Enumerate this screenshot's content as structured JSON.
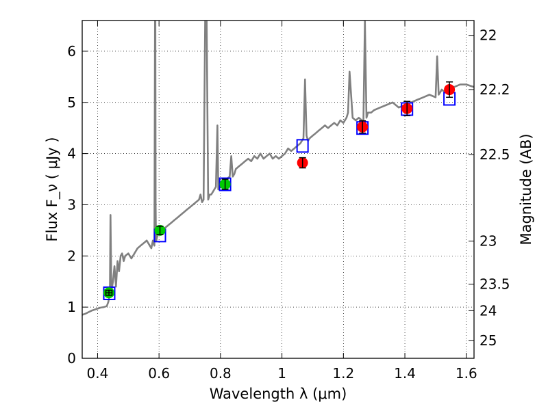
{
  "chart_data": {
    "type": "scatter",
    "xlabel": "Wavelength  λ (μm)",
    "ylabel": "Flux  F_ν  ( μJy )",
    "y2label": "Magnitude (AB)",
    "xlim": [
      0.35,
      1.625
    ],
    "ylim": [
      0,
      6.6
    ],
    "grid": true,
    "x_ticks": [
      0.4,
      0.6,
      0.8,
      1.0,
      1.2,
      1.4,
      1.6
    ],
    "x_tick_labels": [
      "0.4",
      "0.6",
      "0.8",
      "1",
      "1.2",
      "1.4",
      "1.6"
    ],
    "y_ticks": [
      0,
      1,
      2,
      3,
      4,
      5,
      6
    ],
    "y_tick_labels": [
      "0",
      "1",
      "2",
      "3",
      "4",
      "5",
      "6"
    ],
    "y2_ticks": [
      {
        "label": "22",
        "flux": 6.31
      },
      {
        "label": "22.2",
        "flux": 5.25
      },
      {
        "label": "22.5",
        "flux": 3.98
      },
      {
        "label": "23",
        "flux": 2.29
      },
      {
        "label": "23.5",
        "flux": 1.45
      },
      {
        "label": "24",
        "flux": 0.93
      },
      {
        "label": "25",
        "flux": 0.35
      }
    ],
    "series": [
      {
        "marker": "line",
        "color": "#808080",
        "x": [
          0.35,
          0.36,
          0.37,
          0.38,
          0.39,
          0.4,
          0.41,
          0.42,
          0.43,
          0.435,
          0.44,
          0.442,
          0.445,
          0.45,
          0.455,
          0.46,
          0.465,
          0.47,
          0.475,
          0.48,
          0.485,
          0.49,
          0.5,
          0.51,
          0.52,
          0.53,
          0.54,
          0.55,
          0.56,
          0.57,
          0.575,
          0.58,
          0.585,
          0.587,
          0.588,
          0.589,
          0.59,
          0.591,
          0.593,
          0.595,
          0.6,
          0.61,
          0.62,
          0.63,
          0.64,
          0.65,
          0.66,
          0.67,
          0.68,
          0.69,
          0.7,
          0.71,
          0.72,
          0.73,
          0.735,
          0.74,
          0.745,
          0.75,
          0.755,
          0.76,
          0.765,
          0.77,
          0.775,
          0.78,
          0.785,
          0.79,
          0.793,
          0.795,
          0.797,
          0.8,
          0.81,
          0.82,
          0.83,
          0.835,
          0.84,
          0.845,
          0.85,
          0.86,
          0.87,
          0.88,
          0.89,
          0.9,
          0.91,
          0.92,
          0.93,
          0.94,
          0.95,
          0.96,
          0.97,
          0.98,
          0.99,
          1.0,
          1.01,
          1.02,
          1.03,
          1.04,
          1.05,
          1.06,
          1.07,
          1.075,
          1.08,
          1.085,
          1.09,
          1.1,
          1.11,
          1.12,
          1.13,
          1.14,
          1.15,
          1.16,
          1.17,
          1.18,
          1.19,
          1.2,
          1.21,
          1.215,
          1.22,
          1.23,
          1.24,
          1.25,
          1.26,
          1.265,
          1.27,
          1.275,
          1.28,
          1.29,
          1.3,
          1.32,
          1.34,
          1.36,
          1.38,
          1.4,
          1.42,
          1.44,
          1.46,
          1.48,
          1.5,
          1.505,
          1.51,
          1.515,
          1.52,
          1.53,
          1.54,
          1.55,
          1.56,
          1.58,
          1.6,
          1.625
        ],
        "y": [
          0.85,
          0.87,
          0.9,
          0.93,
          0.95,
          0.97,
          0.99,
          1.0,
          1.02,
          1.1,
          1.25,
          2.8,
          1.3,
          1.5,
          1.8,
          1.4,
          1.9,
          1.7,
          2.0,
          2.05,
          1.9,
          2.0,
          2.05,
          1.95,
          2.05,
          2.15,
          2.2,
          2.25,
          2.3,
          2.2,
          2.15,
          2.3,
          2.2,
          6.6,
          6.6,
          3.0,
          2.3,
          2.3,
          2.35,
          2.4,
          2.45,
          2.5,
          2.55,
          2.6,
          2.65,
          2.7,
          2.75,
          2.8,
          2.85,
          2.9,
          2.95,
          3.0,
          3.05,
          3.1,
          3.2,
          3.05,
          3.1,
          6.6,
          6.6,
          3.1,
          3.2,
          3.2,
          3.25,
          3.3,
          3.35,
          4.55,
          3.3,
          3.4,
          3.4,
          3.45,
          3.45,
          3.5,
          3.55,
          3.95,
          3.55,
          3.6,
          3.7,
          3.75,
          3.8,
          3.85,
          3.9,
          3.85,
          3.95,
          3.9,
          4.0,
          3.9,
          3.95,
          4.0,
          3.9,
          3.95,
          3.9,
          3.95,
          4.0,
          4.1,
          4.05,
          4.1,
          4.15,
          4.2,
          4.3,
          5.45,
          4.35,
          4.25,
          4.3,
          4.35,
          4.4,
          4.45,
          4.5,
          4.55,
          4.5,
          4.55,
          4.6,
          4.55,
          4.65,
          4.6,
          4.7,
          4.8,
          5.6,
          4.7,
          4.65,
          4.7,
          4.65,
          4.6,
          6.6,
          4.7,
          4.8,
          4.8,
          4.85,
          4.9,
          4.95,
          5.0,
          4.9,
          4.95,
          5.0,
          5.05,
          5.1,
          5.15,
          5.1,
          5.9,
          5.15,
          5.2,
          5.25,
          5.2,
          5.25,
          5.3,
          5.3,
          5.35,
          5.35,
          5.3
        ]
      },
      {
        "marker": "square-outline",
        "color": "#0000ff",
        "x": [
          0.438,
          0.603,
          0.815,
          1.067,
          1.262,
          1.407,
          1.545
        ],
        "y": [
          1.27,
          2.4,
          3.4,
          4.15,
          4.5,
          4.87,
          5.07
        ]
      },
      {
        "marker": "circle-errorbar",
        "color": "#00cc00",
        "x": [
          0.437,
          0.603,
          0.815
        ],
        "y": [
          1.28,
          2.5,
          3.4
        ],
        "yerr": [
          0.05,
          0.08,
          0.1
        ],
        "xerr": [
          0.01,
          0.0,
          0.0
        ]
      },
      {
        "marker": "circle-errorbar",
        "color": "#ff0000",
        "x": [
          1.067,
          1.262,
          1.407,
          1.545
        ],
        "y": [
          3.82,
          4.52,
          4.88,
          5.25
        ],
        "yerr": [
          0.1,
          0.12,
          0.14,
          0.15
        ],
        "xerr": [
          0.0,
          0.0,
          0.0,
          0.0
        ]
      }
    ]
  }
}
